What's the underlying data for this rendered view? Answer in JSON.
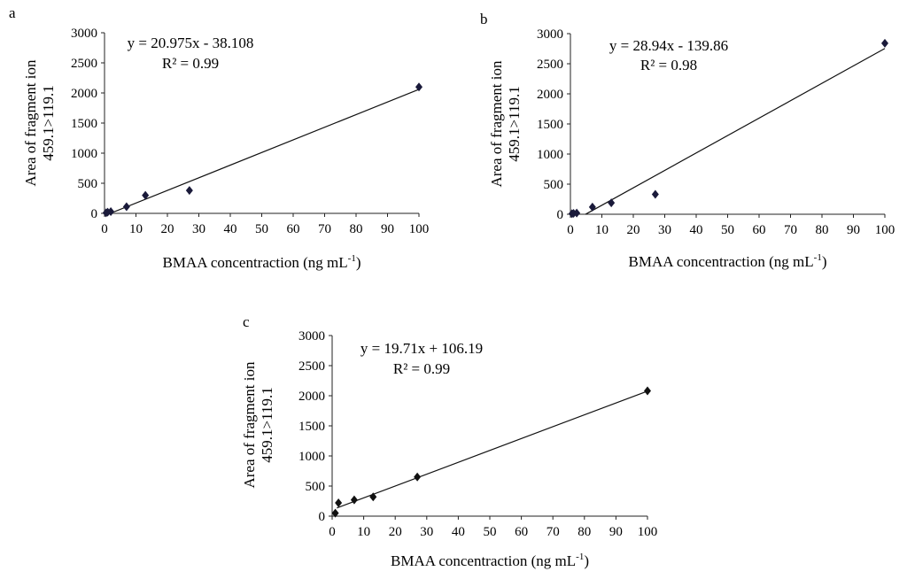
{
  "chart_data": [
    {
      "panel_label": "a",
      "type": "scatter",
      "xlabel": "BMAA concentraction (ng mL",
      "xlabel_sup": "-1",
      "xlabel_end": ")",
      "ylabel_line1": "Area of fragment ion",
      "ylabel_line2": "459.1>119.1",
      "xlim": [
        0,
        100
      ],
      "ylim": [
        0,
        3000
      ],
      "xticks": [
        0,
        10,
        20,
        30,
        40,
        50,
        60,
        70,
        80,
        90,
        100
      ],
      "yticks": [
        0,
        500,
        1000,
        1500,
        2000,
        2500,
        3000
      ],
      "points": [
        [
          0.5,
          10
        ],
        [
          1,
          20
        ],
        [
          2,
          30
        ],
        [
          7,
          110
        ],
        [
          13,
          300
        ],
        [
          27,
          380
        ],
        [
          100,
          2100
        ]
      ],
      "trendline": {
        "slope": 20.975,
        "intercept": -38.108,
        "x_range": [
          1.8,
          100
        ]
      },
      "equation": "y = 20.975x - 38.108",
      "r2": "R² = 0.99",
      "marker_color": "#1a1a3a"
    },
    {
      "panel_label": "b",
      "type": "scatter",
      "xlabel": "BMAA concentraction (ng mL",
      "xlabel_sup": "-1",
      "xlabel_end": ")",
      "ylabel_line1": "Area of fragment ion",
      "ylabel_line2": "459.1>119.1",
      "xlim": [
        0,
        100
      ],
      "ylim": [
        0,
        3000
      ],
      "xticks": [
        0,
        10,
        20,
        30,
        40,
        50,
        60,
        70,
        80,
        90,
        100
      ],
      "yticks": [
        0,
        500,
        1000,
        1500,
        2000,
        2500,
        3000
      ],
      "points": [
        [
          0.5,
          10
        ],
        [
          1,
          15
        ],
        [
          2,
          20
        ],
        [
          7,
          120
        ],
        [
          13,
          190
        ],
        [
          27,
          330
        ],
        [
          100,
          2840
        ]
      ],
      "trendline": {
        "slope": 28.94,
        "intercept": -139.86,
        "x_range": [
          4.8,
          100
        ]
      },
      "equation": "y = 28.94x - 139.86",
      "r2": "R² = 0.98",
      "marker_color": "#1a1a3a"
    },
    {
      "panel_label": "c",
      "type": "scatter",
      "xlabel": "BMAA concentraction (ng mL",
      "xlabel_sup": "-1",
      "xlabel_end": ")",
      "ylabel_line1": "Area of fragment ion",
      "ylabel_line2": "459.1>119.1",
      "xlim": [
        0,
        100
      ],
      "ylim": [
        0,
        3000
      ],
      "xticks": [
        0,
        10,
        20,
        30,
        40,
        50,
        60,
        70,
        80,
        90,
        100
      ],
      "yticks": [
        0,
        500,
        1000,
        1500,
        2000,
        2500,
        3000
      ],
      "points": [
        [
          1,
          50
        ],
        [
          2,
          220
        ],
        [
          7,
          270
        ],
        [
          13,
          320
        ],
        [
          27,
          650
        ],
        [
          100,
          2080
        ]
      ],
      "trendline": {
        "slope": 19.71,
        "intercept": 106.19,
        "x_range": [
          1.5,
          100
        ]
      },
      "equation": "y = 19.71x + 106.19",
      "r2": "R² = 0.99",
      "marker_color": "#111111"
    }
  ]
}
